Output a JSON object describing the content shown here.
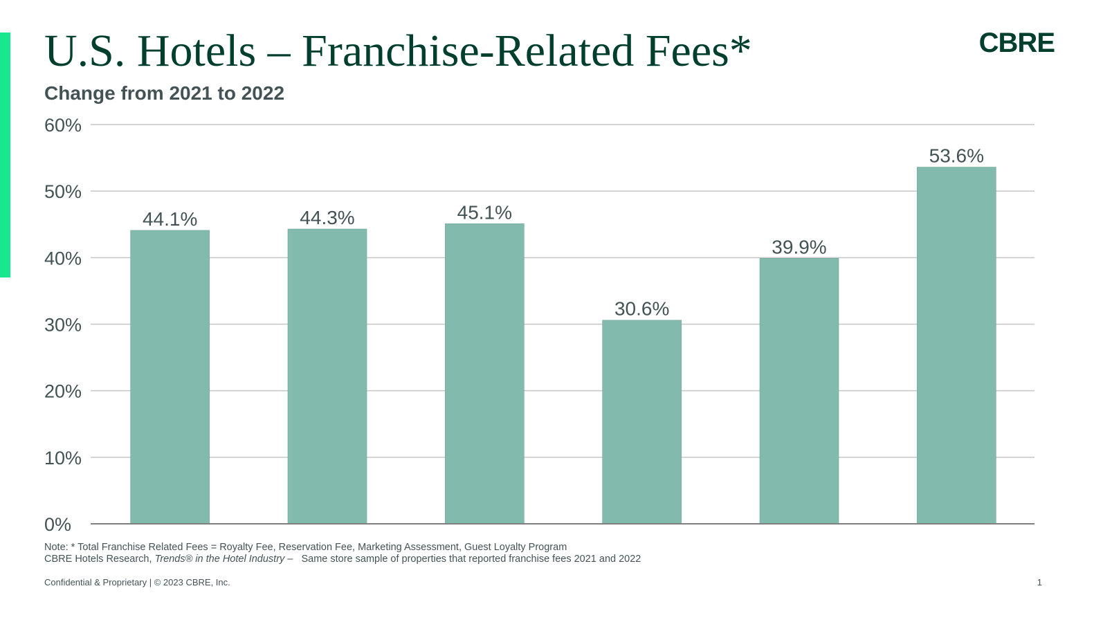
{
  "slide": {
    "title": "U.S. Hotels – Franchise-Related Fees*",
    "subtitle": "Change from 2021 to 2022",
    "logo": "CBRE",
    "note_line1": "Note: *  Total Franchise Related Fees = Royalty Fee, Reservation Fee, Marketing Assessment, Guest Loyalty Program",
    "note_line2_prefix": "CBRE Hotels Research, ",
    "note_line2_italic": "Trends® in the Hotel Industry –",
    "note_line2_suffix": "   Same store sample of properties that reported franchise fees 2021 and 2022",
    "footer": "Confidential & Proprietary | © 2023 CBRE, Inc.",
    "page_number": "1"
  },
  "colors": {
    "accent": "#17e88f",
    "title": "#003f2d",
    "bar": "#82bbae",
    "text": "#435254",
    "grid": "#c6c6c6",
    "axis": "#7f7f7f"
  },
  "chart_data": {
    "type": "bar",
    "title": "U.S. Hotels – Franchise-Related Fees*",
    "subtitle": "Change from 2021 to 2022",
    "categories": [
      "",
      "",
      "",
      "",
      "",
      ""
    ],
    "values": [
      44.1,
      44.3,
      45.1,
      30.6,
      39.9,
      53.6
    ],
    "value_labels": [
      "44.1%",
      "44.3%",
      "45.1%",
      "30.6%",
      "39.9%",
      "53.6%"
    ],
    "ylim": [
      0,
      60
    ],
    "yticks": [
      0,
      10,
      20,
      30,
      40,
      50,
      60
    ],
    "ytick_labels": [
      "0%",
      "10%",
      "20%",
      "30%",
      "40%",
      "50%",
      "60%"
    ],
    "grid": true,
    "xlabel": "",
    "ylabel": ""
  }
}
